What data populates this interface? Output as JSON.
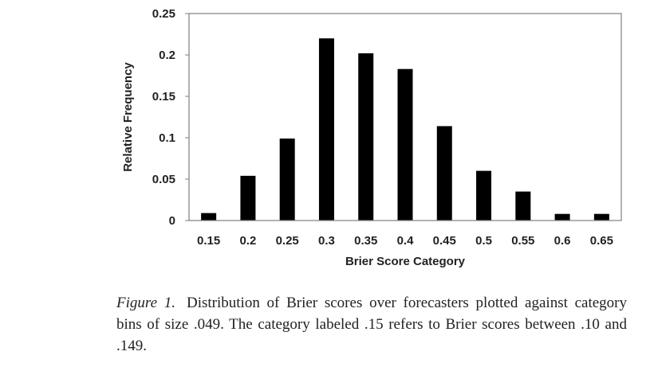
{
  "chart_data": {
    "type": "bar",
    "categories": [
      "0.15",
      "0.2",
      "0.25",
      "0.3",
      "0.35",
      "0.4",
      "0.45",
      "0.5",
      "0.55",
      "0.6",
      "0.65"
    ],
    "values": [
      0.009,
      0.054,
      0.099,
      0.22,
      0.202,
      0.183,
      0.114,
      0.06,
      0.035,
      0.008,
      0.008
    ],
    "title": "",
    "xlabel": "Brier Score Category",
    "ylabel": "Relative Frequency",
    "ylim": [
      0,
      0.25
    ],
    "yticks": [
      "0",
      "0.05",
      "0.1",
      "0.15",
      "0.2",
      "0.25"
    ],
    "grid": false,
    "colors": {
      "bar": "#000000",
      "axis": "#808080"
    }
  },
  "caption": {
    "label": "Figure 1.",
    "text": "Distribution of Brier scores over forecasters plotted against category bins of size .049. The category labeled .15 refers to Brier scores between .10 and .149."
  }
}
